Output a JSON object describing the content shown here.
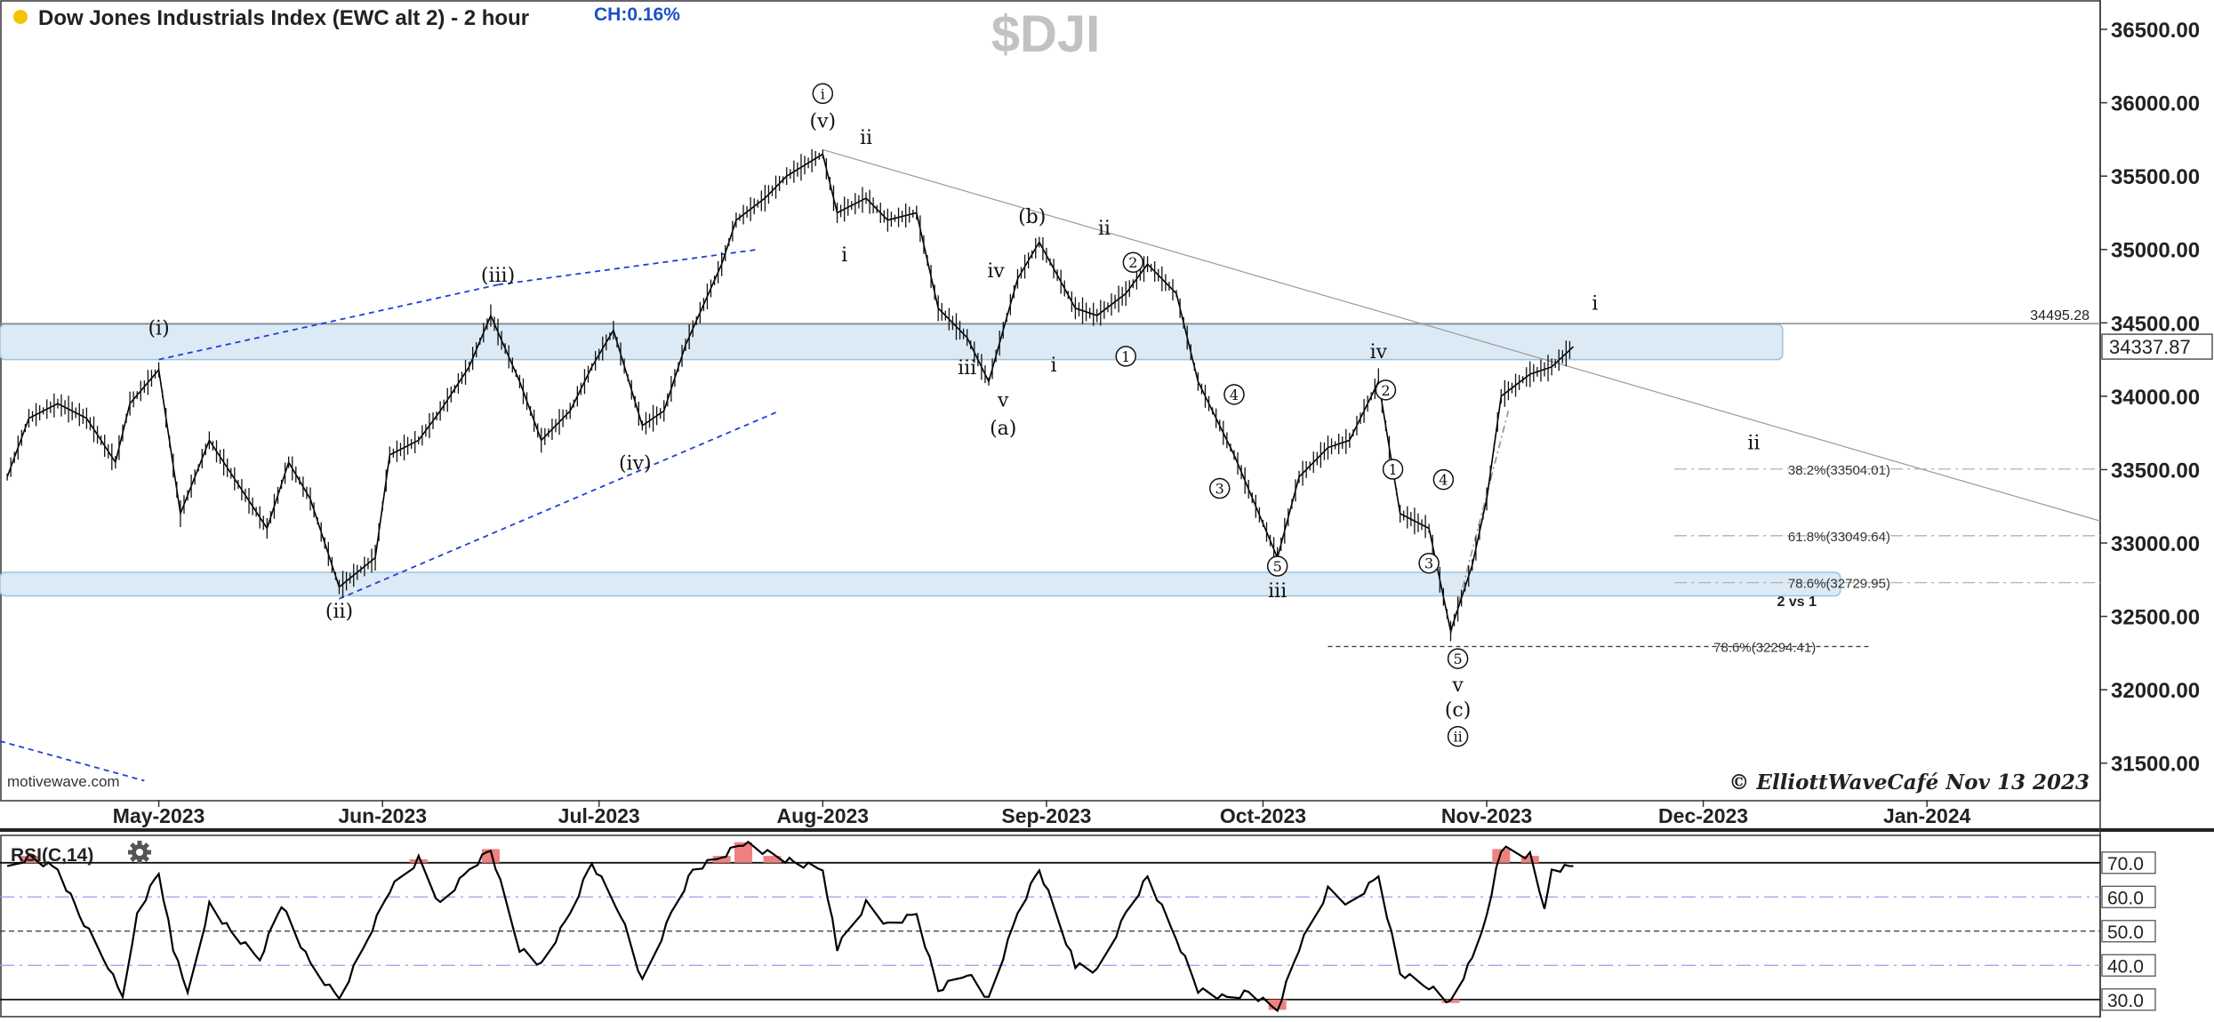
{
  "header": {
    "title": "Dow Jones Industrials Index (EWC alt 2) - 2 hour",
    "change": "CH:0.16%",
    "symbol": "$DJI",
    "status_dot_color": "#f5c400"
  },
  "watermark": "motivewave.com",
  "copyright": "© ElliottWaveCafé Nov 13 2023",
  "colors": {
    "zone_fill": "#dceaf5",
    "zone_stroke": "#9cc3df",
    "channel": "#1f3fd6",
    "rsi_overbought_fill": "#f08080",
    "price_tag_border": "#555555"
  },
  "chart_data": {
    "type": "line",
    "title": "Dow Jones Industrials Index (EWC alt 2) - 2 hour",
    "y_axis": {
      "min": 31250,
      "max": 36700,
      "ticks": [
        31500,
        32000,
        32500,
        33000,
        33500,
        34000,
        34500,
        35000,
        35500,
        36000,
        36500
      ],
      "tick_labels": [
        "31500.00",
        "32000.00",
        "32500.00",
        "33000.00",
        "33500.00",
        "34000.00",
        "34500.00",
        "35000.00",
        "35500.00",
        "36000.00",
        "36500.00"
      ]
    },
    "x_axis": {
      "labels": [
        "May-2023",
        "Jun-2023",
        "Jul-2023",
        "Aug-2023",
        "Sep-2023",
        "Oct-2023",
        "Nov-2023",
        "Dec-2023",
        "Jan-2024"
      ],
      "label_dates": [
        "2023-05-01",
        "2023-06-01",
        "2023-07-01",
        "2023-08-01",
        "2023-09-01",
        "2023-10-01",
        "2023-11-01",
        "2023-12-01",
        "2024-01-01"
      ],
      "start": "2023-04-09",
      "end": "2024-01-25"
    },
    "price_path": [
      [
        "2023-04-10",
        33450
      ],
      [
        "2023-04-13",
        33850
      ],
      [
        "2023-04-17",
        33950
      ],
      [
        "2023-04-21",
        33850
      ],
      [
        "2023-04-25",
        33550
      ],
      [
        "2023-04-27",
        33950
      ],
      [
        "2023-05-01",
        34180
      ],
      [
        "2023-05-04",
        33200
      ],
      [
        "2023-05-08",
        33700
      ],
      [
        "2023-05-12",
        33400
      ],
      [
        "2023-05-16",
        33100
      ],
      [
        "2023-05-19",
        33550
      ],
      [
        "2023-05-22",
        33300
      ],
      [
        "2023-05-26",
        32700
      ],
      [
        "2023-05-31",
        32900
      ],
      [
        "2023-06-02",
        33600
      ],
      [
        "2023-06-06",
        33700
      ],
      [
        "2023-06-09",
        33900
      ],
      [
        "2023-06-13",
        34200
      ],
      [
        "2023-06-16",
        34550
      ],
      [
        "2023-06-20",
        34100
      ],
      [
        "2023-06-23",
        33700
      ],
      [
        "2023-06-27",
        33900
      ],
      [
        "2023-06-30",
        34200
      ],
      [
        "2023-07-03",
        34450
      ],
      [
        "2023-07-07",
        33800
      ],
      [
        "2023-07-10",
        33900
      ],
      [
        "2023-07-13",
        34350
      ],
      [
        "2023-07-18",
        34900
      ],
      [
        "2023-07-20",
        35200
      ],
      [
        "2023-07-24",
        35350
      ],
      [
        "2023-07-27",
        35500
      ],
      [
        "2023-08-01",
        35650
      ],
      [
        "2023-08-03",
        35250
      ],
      [
        "2023-08-07",
        35350
      ],
      [
        "2023-08-10",
        35200
      ],
      [
        "2023-08-14",
        35250
      ],
      [
        "2023-08-17",
        34600
      ],
      [
        "2023-08-21",
        34400
      ],
      [
        "2023-08-24",
        34100
      ],
      [
        "2023-08-28",
        34800
      ],
      [
        "2023-08-31",
        35050
      ],
      [
        "2023-09-05",
        34600
      ],
      [
        "2023-09-08",
        34550
      ],
      [
        "2023-09-12",
        34700
      ],
      [
        "2023-09-15",
        34900
      ],
      [
        "2023-09-19",
        34700
      ],
      [
        "2023-09-22",
        34100
      ],
      [
        "2023-09-27",
        33600
      ],
      [
        "2023-10-03",
        32900
      ],
      [
        "2023-10-06",
        33450
      ],
      [
        "2023-10-10",
        33650
      ],
      [
        "2023-10-13",
        33700
      ],
      [
        "2023-10-17",
        34100
      ],
      [
        "2023-10-20",
        33200
      ],
      [
        "2023-10-24",
        33100
      ],
      [
        "2023-10-27",
        32400
      ],
      [
        "2023-10-30",
        32850
      ],
      [
        "2023-11-01",
        33300
      ],
      [
        "2023-11-03",
        34000
      ],
      [
        "2023-11-07",
        34150
      ],
      [
        "2023-11-10",
        34200
      ],
      [
        "2023-11-13",
        34337.87
      ]
    ],
    "last_price": 34337.87,
    "last_price_label": "34337.87",
    "horizontal_line": {
      "value": 34495.28,
      "label": "34495.28"
    },
    "zones": [
      {
        "from": "2023-04-09",
        "to": "2023-12-12",
        "low": 34250,
        "high": 34490
      },
      {
        "from": "2023-04-09",
        "to": "2023-12-20",
        "low": 32640,
        "high": 32800
      }
    ],
    "trendlines": [
      {
        "style": "dashed",
        "from": [
          "2023-05-01",
          34250
        ],
        "to": [
          "2023-06-17",
          34760
        ],
        "color": "#1f3fd6"
      },
      {
        "style": "dashed",
        "from": [
          "2023-06-17",
          34760
        ],
        "to": [
          "2023-07-23",
          35000
        ],
        "color": "#1f3fd6"
      },
      {
        "style": "dashed",
        "from": [
          "2023-05-26",
          32620
        ],
        "to": [
          "2023-07-26",
          33900
        ],
        "color": "#1f3fd6"
      },
      {
        "style": "dashed",
        "from": [
          "2023-04-09",
          31650
        ],
        "to": [
          "2023-04-29",
          31380
        ],
        "color": "#1f3fd6"
      },
      {
        "style": "solid",
        "from": [
          "2023-08-01",
          35680
        ],
        "to": [
          "2024-01-25",
          33150
        ],
        "color": "#9a9a9a"
      },
      {
        "style": "dashdot",
        "from": [
          "2023-10-27",
          32380
        ],
        "to": [
          "2023-11-04",
          33900
        ],
        "color": "#9a9a9a"
      }
    ],
    "fib_levels": [
      {
        "label": "38.2%(33504.01)",
        "value": 33504.01,
        "from": "2023-11-27",
        "to": "2024-01-25"
      },
      {
        "label": "61.8%(33049.64)",
        "value": 33049.64,
        "from": "2023-11-27",
        "to": "2024-01-25"
      },
      {
        "label": "78.6%(32729.95)",
        "value": 32729.95,
        "from": "2023-11-27",
        "to": "2024-01-25"
      },
      {
        "label": "78.6%(32294.41)",
        "value": 32294.41,
        "from": "2023-10-10",
        "to": "2023-12-24"
      }
    ],
    "fib_note": "2 vs 1",
    "wave_labels": [
      {
        "text": "(i)",
        "date": "2023-05-01",
        "price": 34420
      },
      {
        "text": "(ii)",
        "date": "2023-05-26",
        "price": 32490
      },
      {
        "text": "(iii)",
        "date": "2023-06-17",
        "price": 34780
      },
      {
        "text": "(iv)",
        "date": "2023-07-06",
        "price": 33500
      },
      {
        "text": "(v)",
        "date": "2023-08-01",
        "price": 35830
      },
      {
        "text": "i",
        "date": "2023-08-01",
        "price": 36020,
        "circled": true
      },
      {
        "text": "ii",
        "date": "2023-08-07",
        "price": 35720
      },
      {
        "text": "i",
        "date": "2023-08-04",
        "price": 34920
      },
      {
        "text": "iii",
        "date": "2023-08-21",
        "price": 34150
      },
      {
        "text": "iv",
        "date": "2023-08-25",
        "price": 34810
      },
      {
        "text": "v",
        "date": "2023-08-26",
        "price": 33930
      },
      {
        "text": "(a)",
        "date": "2023-08-26",
        "price": 33740
      },
      {
        "text": "(b)",
        "date": "2023-08-30",
        "price": 35180
      },
      {
        "text": "i",
        "date": "2023-09-02",
        "price": 34170
      },
      {
        "text": "ii",
        "date": "2023-09-09",
        "price": 35100
      },
      {
        "text": "2",
        "date": "2023-09-13",
        "price": 34870,
        "circled": true
      },
      {
        "text": "1",
        "date": "2023-09-12",
        "price": 34230,
        "circled": true
      },
      {
        "text": "4",
        "date": "2023-09-27",
        "price": 33970,
        "circled": true
      },
      {
        "text": "3",
        "date": "2023-09-25",
        "price": 33330,
        "circled": true
      },
      {
        "text": "5",
        "date": "2023-10-03",
        "price": 32800,
        "circled": true
      },
      {
        "text": "iii",
        "date": "2023-10-03",
        "price": 32630
      },
      {
        "text": "iv",
        "date": "2023-10-17",
        "price": 34260
      },
      {
        "text": "2",
        "date": "2023-10-18",
        "price": 34000,
        "circled": true
      },
      {
        "text": "1",
        "date": "2023-10-19",
        "price": 33460,
        "circled": true
      },
      {
        "text": "4",
        "date": "2023-10-26",
        "price": 33390,
        "circled": true
      },
      {
        "text": "3",
        "date": "2023-10-24",
        "price": 32820,
        "circled": true
      },
      {
        "text": "5",
        "date": "2023-10-28",
        "price": 32170,
        "circled": true
      },
      {
        "text": "v",
        "date": "2023-10-28",
        "price": 31990
      },
      {
        "text": "(c)",
        "date": "2023-10-28",
        "price": 31820
      },
      {
        "text": "ii",
        "date": "2023-10-28",
        "price": 31640,
        "circled": true
      },
      {
        "text": "i",
        "date": "2023-11-16",
        "price": 34590
      },
      {
        "text": "ii",
        "date": "2023-12-08",
        "price": 33640
      }
    ]
  },
  "rsi": {
    "label": "RSI(C,14)",
    "settings_icon": "gear-icon",
    "min": 25,
    "max": 78,
    "levels": [
      {
        "value": 70,
        "label": "70.0",
        "style": "solid"
      },
      {
        "value": 60,
        "label": "60.0",
        "style": "dashdot"
      },
      {
        "value": 50,
        "label": "50.0",
        "style": "dashed"
      },
      {
        "value": 40,
        "label": "40.0",
        "style": "dashdot"
      },
      {
        "value": 30,
        "label": "30.0",
        "style": "solid"
      }
    ],
    "path": [
      [
        "2023-04-10",
        68
      ],
      [
        "2023-04-13",
        72
      ],
      [
        "2023-04-17",
        68
      ],
      [
        "2023-04-20",
        55
      ],
      [
        "2023-04-24",
        40
      ],
      [
        "2023-04-26",
        30
      ],
      [
        "2023-04-28",
        55
      ],
      [
        "2023-05-01",
        67
      ],
      [
        "2023-05-03",
        45
      ],
      [
        "2023-05-05",
        31
      ],
      [
        "2023-05-08",
        58
      ],
      [
        "2023-05-11",
        50
      ],
      [
        "2023-05-15",
        42
      ],
      [
        "2023-05-18",
        58
      ],
      [
        "2023-05-22",
        40
      ],
      [
        "2023-05-26",
        30
      ],
      [
        "2023-05-30",
        48
      ],
      [
        "2023-06-02",
        62
      ],
      [
        "2023-06-06",
        71
      ],
      [
        "2023-06-09",
        58
      ],
      [
        "2023-06-13",
        68
      ],
      [
        "2023-06-16",
        74
      ],
      [
        "2023-06-20",
        45
      ],
      [
        "2023-06-23",
        40
      ],
      [
        "2023-06-27",
        55
      ],
      [
        "2023-06-30",
        70
      ],
      [
        "2023-07-04",
        55
      ],
      [
        "2023-07-07",
        35
      ],
      [
        "2023-07-11",
        55
      ],
      [
        "2023-07-14",
        68
      ],
      [
        "2023-07-18",
        72
      ],
      [
        "2023-07-21",
        76
      ],
      [
        "2023-07-25",
        72
      ],
      [
        "2023-07-28",
        70
      ],
      [
        "2023-08-01",
        68
      ],
      [
        "2023-08-03",
        45
      ],
      [
        "2023-08-07",
        58
      ],
      [
        "2023-08-10",
        52
      ],
      [
        "2023-08-14",
        55
      ],
      [
        "2023-08-17",
        33
      ],
      [
        "2023-08-21",
        38
      ],
      [
        "2023-08-24",
        30
      ],
      [
        "2023-08-28",
        55
      ],
      [
        "2023-08-31",
        68
      ],
      [
        "2023-09-05",
        40
      ],
      [
        "2023-09-08",
        38
      ],
      [
        "2023-09-12",
        55
      ],
      [
        "2023-09-15",
        66
      ],
      [
        "2023-09-19",
        48
      ],
      [
        "2023-09-22",
        33
      ],
      [
        "2023-09-26",
        30
      ],
      [
        "2023-09-29",
        32
      ],
      [
        "2023-10-03",
        27
      ],
      [
        "2023-10-06",
        45
      ],
      [
        "2023-10-10",
        62
      ],
      [
        "2023-10-13",
        58
      ],
      [
        "2023-10-17",
        66
      ],
      [
        "2023-10-20",
        38
      ],
      [
        "2023-10-24",
        34
      ],
      [
        "2023-10-27",
        29
      ],
      [
        "2023-10-30",
        42
      ],
      [
        "2023-11-01",
        55
      ],
      [
        "2023-11-03",
        74
      ],
      [
        "2023-11-07",
        72
      ],
      [
        "2023-11-09",
        56
      ],
      [
        "2023-11-10",
        68
      ],
      [
        "2023-11-13",
        69
      ]
    ]
  }
}
